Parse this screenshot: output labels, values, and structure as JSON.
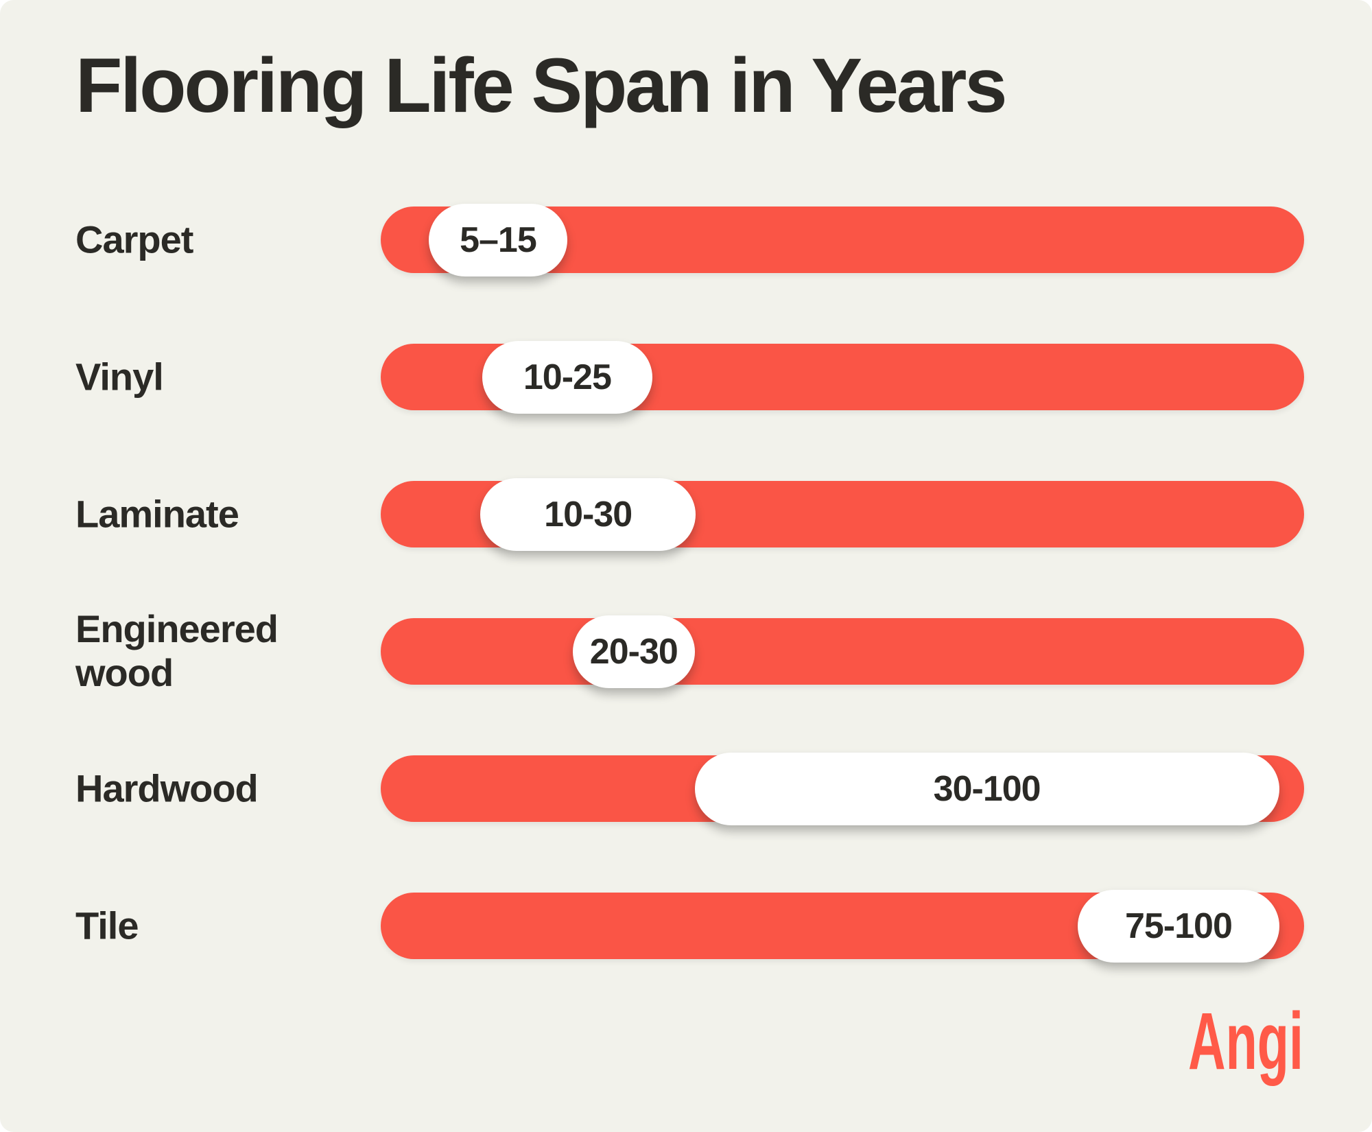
{
  "page": {
    "background": "#F2F2EB",
    "outer_background": "#FFFFFF"
  },
  "colors": {
    "bar": "#FA5546",
    "pill": "#FFFFFF",
    "text_dark": "#2B2A26"
  },
  "logo": {
    "text": "Angi",
    "color": "#FF5A48"
  },
  "chart_data": {
    "type": "bar",
    "orientation": "horizontal",
    "title": "Flooring Life Span in Years",
    "unit": "years",
    "xlim": [
      0,
      100
    ],
    "grid": false,
    "legend": false,
    "categories": [
      "Carpet",
      "Vinyl",
      "Laminate",
      "Engineered wood",
      "Hardwood",
      "Tile"
    ],
    "rows": [
      {
        "label": "Carpet",
        "min": 5,
        "max": 15,
        "range_label": "5–15",
        "pill_left_pct": 5.2,
        "pill_width_pct": 15.0
      },
      {
        "label": "Vinyl",
        "min": 10,
        "max": 25,
        "range_label": "10-25",
        "pill_left_pct": 11.0,
        "pill_width_pct": 18.4
      },
      {
        "label": "Laminate",
        "min": 10,
        "max": 30,
        "range_label": "10-30",
        "pill_left_pct": 10.8,
        "pill_width_pct": 23.3
      },
      {
        "label": "Engineered wood",
        "min": 20,
        "max": 30,
        "range_label": "20-30",
        "pill_left_pct": 20.8,
        "pill_width_pct": 13.2
      },
      {
        "label": "Hardwood",
        "min": 30,
        "max": 100,
        "range_label": "30-100",
        "pill_left_pct": 34.0,
        "pill_width_pct": 63.3
      },
      {
        "label": "Tile",
        "min": 75,
        "max": 100,
        "range_label": "75-100",
        "pill_left_pct": 75.5,
        "pill_width_pct": 21.8
      }
    ]
  }
}
